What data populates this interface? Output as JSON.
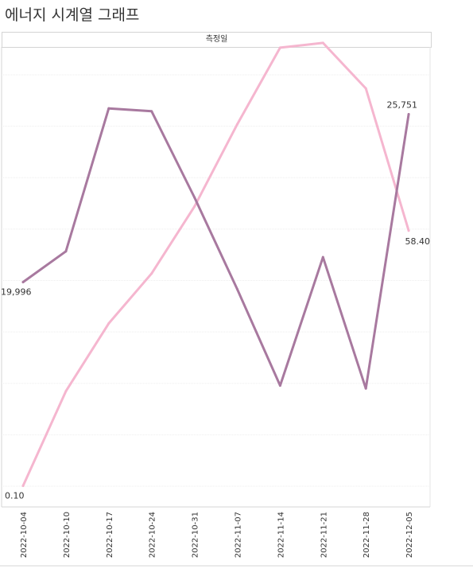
{
  "title": "에너지 시계열 그래프",
  "chart_data": {
    "type": "line",
    "panel_header": "측정일",
    "categories": [
      "2022-10-04",
      "2022-10-10",
      "2022-10-17",
      "2022-10-24",
      "2022-10-31",
      "2022-11-07",
      "2022-11-14",
      "2022-11-21",
      "2022-11-28",
      "2022-12-05"
    ],
    "series": [
      {
        "color": "#a8799f",
        "ylim": [
          13000,
          28000
        ],
        "values": [
          19996,
          21050,
          25950,
          25850,
          22900,
          19750,
          16450,
          20850,
          16350,
          25751
        ],
        "labels": [
          {
            "index": 0,
            "text": "19,996",
            "pos": "below"
          },
          {
            "index": 9,
            "text": "25,751",
            "pos": "above"
          }
        ]
      },
      {
        "color": "#f5b6cf",
        "ylim": [
          0,
          100
        ],
        "values": [
          0.1,
          21.7,
          37.2,
          48.6,
          63.9,
          82.7,
          100.2,
          101.3,
          90.9,
          58.4
        ],
        "labels": [
          {
            "index": 0,
            "text": "0.10",
            "pos": "below"
          },
          {
            "index": 9,
            "text": "58.40",
            "pos": "below"
          }
        ]
      }
    ],
    "grid": true,
    "legend": "none"
  }
}
